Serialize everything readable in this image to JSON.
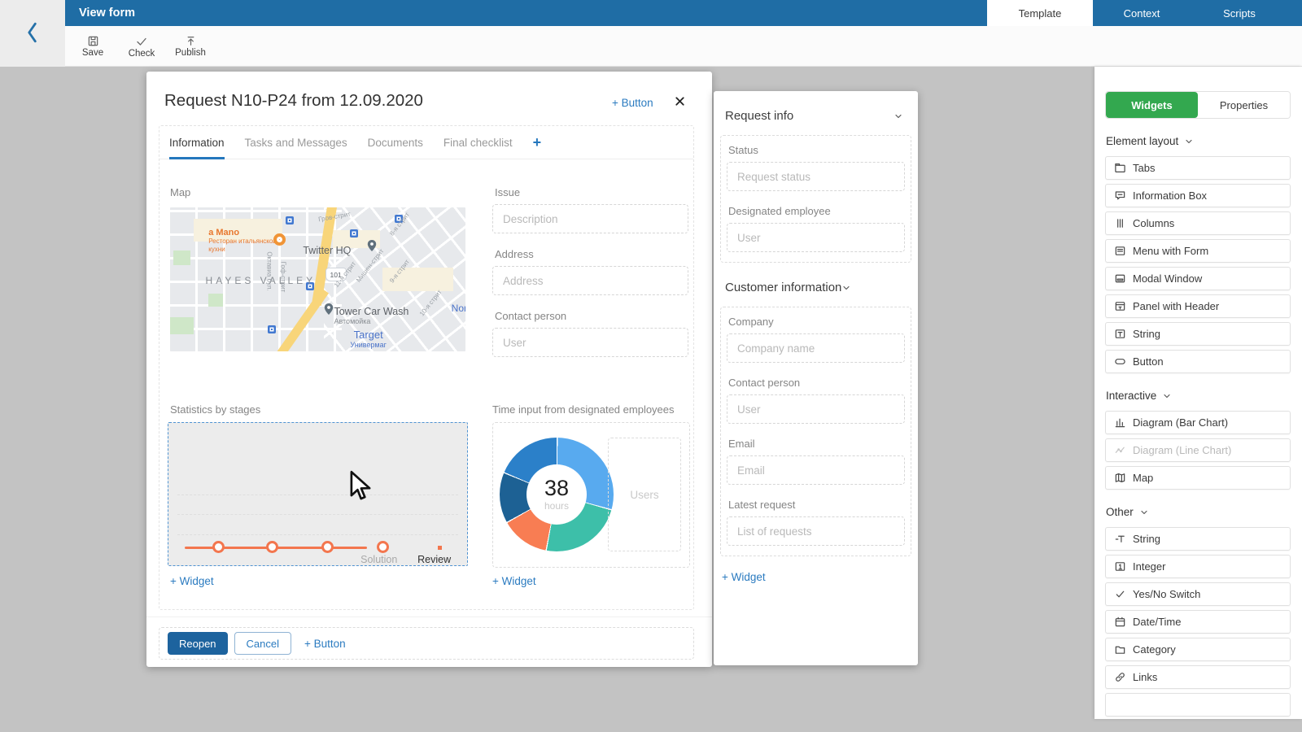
{
  "colors": {
    "topbar_blue": "#1f6da5",
    "accent_link_blue": "#2b7bc0",
    "tab_underline_blue": "#2477bd",
    "primary_button_blue": "#1d639e",
    "widgets_tab_green": "#33a84f",
    "selection_dashed_blue": "#4f93d2",
    "canvas_gray": "#c3c3c3",
    "chart_line_orange": "#f3764e"
  },
  "topbar": {
    "title": "View form",
    "tabs": [
      {
        "label": "Template",
        "active": true
      },
      {
        "label": "Context",
        "active": false
      },
      {
        "label": "Scripts",
        "active": false
      }
    ]
  },
  "toolbar": {
    "buttons": [
      {
        "label": "Save",
        "icon": "save-icon"
      },
      {
        "label": "Check",
        "icon": "check-icon"
      },
      {
        "label": "Publish",
        "icon": "publish-icon"
      }
    ]
  },
  "modal": {
    "title": "Request N10-P24 from 12.09.2020",
    "header_button_label": "+ Button",
    "tabs": [
      {
        "label": "Information",
        "active": true
      },
      {
        "label": "Tasks and Messages",
        "active": false
      },
      {
        "label": "Documents",
        "active": false
      },
      {
        "label": "Final checklist",
        "active": false
      }
    ],
    "tab_add_label": "+",
    "map": {
      "label": "Map",
      "poi": {
        "restaurant_name": "a Mano",
        "restaurant_sub": "Ресторан итальянской кухни",
        "twitter": "Twitter HQ",
        "district": "HAYES VALLEY",
        "highway_badge": "101",
        "carwash": "Tower Car Wash",
        "carwash_sub": "Автомойка",
        "target": "Target",
        "target_sub": "Универмаг",
        "edge_label": "Nor",
        "streets": [
          "Октавиа бул.",
          "Гоф-стрит",
          "Мишен-стрит",
          "9-я стрит",
          "10-я стрит",
          "8-я стрит",
          "Гров-стрит",
          "11-я стрит"
        ]
      }
    },
    "fields": [
      {
        "label": "Issue",
        "placeholder": "Description"
      },
      {
        "label": "Address",
        "placeholder": "Address"
      },
      {
        "label": "Contact person",
        "placeholder": "User"
      }
    ],
    "add_widget_label": "+ Widget",
    "footer": {
      "buttons": [
        {
          "label": "Reopen",
          "style": "primary"
        },
        {
          "label": "Cancel",
          "style": "secondary"
        },
        {
          "label": "+ Button",
          "style": "link"
        }
      ]
    }
  },
  "info_panel": {
    "sections": [
      {
        "title": "Request info",
        "fields": [
          {
            "label": "Status",
            "placeholder": "Request status"
          },
          {
            "label": "Designated employee",
            "placeholder": "User"
          }
        ]
      },
      {
        "title": "Customer information",
        "fields": [
          {
            "label": "Company",
            "placeholder": "Company name"
          },
          {
            "label": "Contact person",
            "placeholder": "User"
          },
          {
            "label": "Email",
            "placeholder": "Email"
          },
          {
            "label": "Latest request",
            "placeholder": "List of requests"
          }
        ]
      }
    ],
    "add_widget_label": "+ Widget"
  },
  "widgets_panel": {
    "tabs": [
      {
        "label": "Widgets",
        "active": true
      },
      {
        "label": "Properties",
        "active": false
      }
    ],
    "groups": [
      {
        "title": "Element layout",
        "items": [
          {
            "label": "Tabs",
            "icon": "tabs-icon"
          },
          {
            "label": "Information Box",
            "icon": "info-box-icon"
          },
          {
            "label": "Columns",
            "icon": "columns-icon"
          },
          {
            "label": "Menu with Form",
            "icon": "menu-form-icon"
          },
          {
            "label": "Modal Window",
            "icon": "modal-window-icon"
          },
          {
            "label": "Panel with Header",
            "icon": "panel-header-icon"
          },
          {
            "label": "String",
            "icon": "string-box-icon"
          },
          {
            "label": "Button",
            "icon": "button-icon"
          }
        ]
      },
      {
        "title": "Interactive",
        "items": [
          {
            "label": "Diagram (Bar Chart)",
            "icon": "bar-chart-icon",
            "disabled": false
          },
          {
            "label": "Diagram (Line Chart)",
            "icon": "line-chart-icon",
            "disabled": true
          },
          {
            "label": "Map",
            "icon": "map-icon",
            "disabled": false
          }
        ]
      },
      {
        "title": "Other",
        "items": [
          {
            "label": "String",
            "icon": "text-icon"
          },
          {
            "label": "Integer",
            "icon": "integer-icon"
          },
          {
            "label": "Yes/No Switch",
            "icon": "check-icon"
          },
          {
            "label": "Date/Time",
            "icon": "calendar-icon"
          },
          {
            "label": "Category",
            "icon": "folder-icon"
          },
          {
            "label": "Links",
            "icon": "link-icon"
          },
          {
            "label": ""
          }
        ]
      }
    ]
  },
  "chart_data": [
    {
      "type": "line",
      "title": "Statistics by stages",
      "line_color": "#f3764e",
      "points_x_pct": [
        17,
        35,
        53.5,
        72
      ],
      "line_x_pct": [
        5.5,
        66.5
      ],
      "square_dot_x_pct": 91,
      "baseline_y_pct": 87.5,
      "labels": [
        {
          "text": "Solution",
          "x_pct": 70.5,
          "muted": true
        },
        {
          "text": "Review",
          "x_pct": 89,
          "muted": false
        }
      ],
      "gridlines_y_pct": [
        50,
        64,
        78
      ]
    },
    {
      "type": "pie",
      "title": "Time input from designated employees",
      "center_value": "38",
      "center_unit": "hours",
      "legend_placeholder": "Users",
      "segments": [
        {
          "name": "segment-1",
          "color": "#58aaef",
          "start_deg": 0,
          "end_deg": 105
        },
        {
          "name": "segment-2",
          "color": "#3dbfa9",
          "start_deg": 105,
          "end_deg": 190
        },
        {
          "name": "segment-3",
          "color": "#f87d53",
          "start_deg": 190,
          "end_deg": 240
        },
        {
          "name": "segment-4",
          "color": "#1d6194",
          "start_deg": 240,
          "end_deg": 292
        },
        {
          "name": "segment-5",
          "color": "#2b80c9",
          "start_deg": 292,
          "end_deg": 360
        }
      ]
    }
  ]
}
